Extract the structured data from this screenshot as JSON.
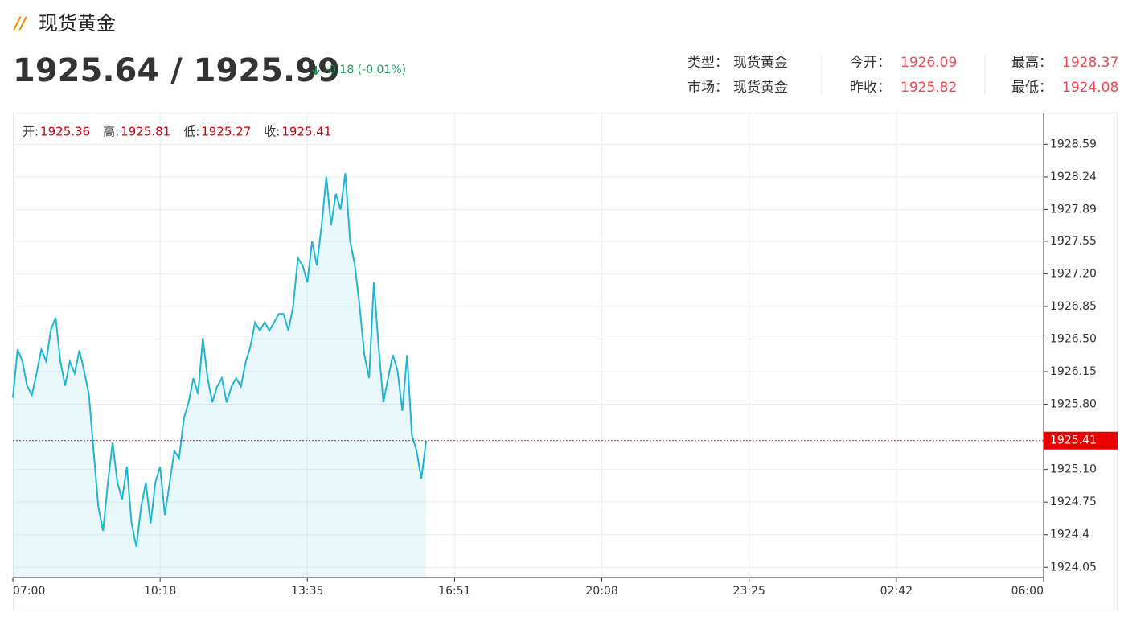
{
  "header": {
    "title": "现货黄金",
    "price": "1925.64 / 1925.99",
    "change": "-0.18 (-0.01%)",
    "info": [
      [
        {
          "label": "类型：",
          "value": "现货黄金"
        },
        {
          "label": "今开：",
          "value": "1926.09"
        },
        {
          "label": "最高：",
          "value": "1928.37"
        }
      ],
      [
        {
          "label": "市场：",
          "value": "现货黄金"
        },
        {
          "label": "昨收：",
          "value": "1925.82"
        },
        {
          "label": "最低：",
          "value": "1924.08"
        }
      ]
    ]
  },
  "chart_data": {
    "type": "area",
    "ohlc": [
      {
        "label": "开:",
        "value": "1925.36"
      },
      {
        "label": "高:",
        "value": "1925.81"
      },
      {
        "label": "低:",
        "value": "1925.27"
      },
      {
        "label": "收:",
        "value": "1925.41"
      }
    ],
    "xticks": [
      "07:00",
      "10:18",
      "13:35",
      "16:51",
      "20:08",
      "23:25",
      "02:42",
      "06:00"
    ],
    "ylim": [
      1923.94,
      1928.93
    ],
    "yticks": [
      1924.05,
      1924.4,
      {
        "value": 1924.75,
        "label": "1924.75"
      },
      {
        "value": 1925.1,
        "label": "1925.10"
      },
      {
        "value": 1925.8,
        "label": "1925.80"
      },
      1926.15,
      {
        "value": 1926.5,
        "label": "1926.50"
      },
      1926.85,
      {
        "value": 1927.2,
        "label": "1927.20"
      },
      1927.55,
      1927.89,
      1928.24,
      1928.59
    ],
    "last_price": 1925.41,
    "grid": true,
    "series": [
      {
        "color": "#1fb6d3",
        "values": [
          1925.87,
          1926.39,
          1926.26,
          1926.0,
          1925.9,
          1926.13,
          1926.39,
          1926.26,
          1926.6,
          1926.73,
          1926.26,
          1926.0,
          1926.26,
          1926.13,
          1926.38,
          1926.16,
          1925.91,
          1925.3,
          1924.7,
          1924.44,
          1924.96,
          1925.39,
          1924.96,
          1924.78,
          1925.13,
          1924.52,
          1924.27,
          1924.7,
          1924.96,
          1924.52,
          1924.96,
          1925.13,
          1924.61,
          1924.96,
          1925.3,
          1925.22,
          1925.65,
          1925.82,
          1926.08,
          1925.91,
          1926.51,
          1926.08,
          1925.82,
          1925.99,
          1926.08,
          1925.82,
          1925.99,
          1926.08,
          1925.99,
          1926.25,
          1926.42,
          1926.68,
          1926.59,
          1926.68,
          1926.59,
          1926.68,
          1926.77,
          1926.77,
          1926.59,
          1926.85,
          1927.37,
          1927.29,
          1927.11,
          1927.55,
          1927.29,
          1927.72,
          1928.24,
          1927.72,
          1928.06,
          1927.89,
          1928.28,
          1927.55,
          1927.29,
          1926.85,
          1926.33,
          1926.08,
          1927.11,
          1926.42,
          1925.82,
          1926.08,
          1926.33,
          1926.16,
          1925.73,
          1926.33,
          1925.47,
          1925.3,
          1925.0,
          1925.41
        ]
      }
    ]
  }
}
